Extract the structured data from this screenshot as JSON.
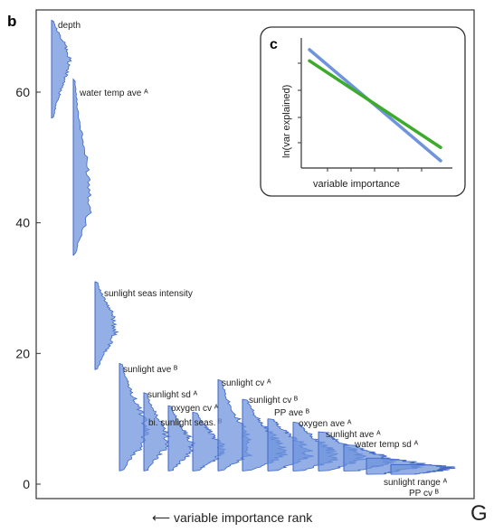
{
  "chart_data": [
    {
      "type": "area",
      "panel": "b",
      "xlabel": "variable importance rank",
      "ylabel": "",
      "ylim": [
        0,
        70
      ],
      "yticks": [
        0,
        20,
        40,
        60
      ],
      "series": [
        {
          "name": "depth",
          "values": {
            "min": 56,
            "max": 71,
            "mode": 65
          }
        },
        {
          "name": "water temp ave ᴬ",
          "values": {
            "min": 35,
            "max": 62,
            "mode": 43
          }
        },
        {
          "name": "sunlight seas intensity",
          "values": {
            "min": 17.5,
            "max": 31,
            "mode": 24
          }
        },
        {
          "name": "sunlight ave ᴮ",
          "values": {
            "min": 2,
            "max": 18.5,
            "mode": 7.5
          }
        },
        {
          "name": "sunlight sd ᴬ",
          "values": {
            "min": 2,
            "max": 14,
            "mode": 6.5
          }
        },
        {
          "name": "oxygen cv ᴬ",
          "values": {
            "min": 2,
            "max": 12,
            "mode": 5.5
          }
        },
        {
          "name": "bi. sunlight seas. ᴮ",
          "values": {
            "min": 2,
            "max": 11,
            "mode": 5
          }
        },
        {
          "name": "sunlight cv ᴬ",
          "values": {
            "min": 2,
            "max": 16,
            "mode": 5
          }
        },
        {
          "name": "sunlight cv ᴮ",
          "values": {
            "min": 2,
            "max": 13,
            "mode": 4.5
          }
        },
        {
          "name": "PP ave ᴮ",
          "values": {
            "min": 2,
            "max": 10,
            "mode": 4.5
          }
        },
        {
          "name": "oxygen ave ᴬ",
          "values": {
            "min": 2,
            "max": 9.5,
            "mode": 4
          }
        },
        {
          "name": "sunlight ave ᴬ",
          "values": {
            "min": 2,
            "max": 8,
            "mode": 4
          }
        },
        {
          "name": "water temp sd ᴬ",
          "values": {
            "min": 2,
            "max": 6,
            "mode": 3.5
          }
        },
        {
          "name": "sunlight range ᴬ",
          "values": {
            "min": 1.5,
            "max": 4,
            "mode": 3
          }
        },
        {
          "name": "PP cv ᴮ",
          "values": {
            "min": 1.5,
            "max": 3,
            "mode": 2.5
          }
        }
      ]
    },
    {
      "type": "line",
      "panel": "c",
      "xlabel": "variable importance",
      "ylabel": "ln(var explained)",
      "series": [
        {
          "values": [
            [
              0,
              1.0
            ],
            [
              1,
              0.0
            ]
          ],
          "color": "#6f94dc"
        },
        {
          "values": [
            [
              0,
              0.9
            ],
            [
              1,
              0.12
            ]
          ],
          "color": "#3cab2a"
        }
      ]
    }
  ],
  "labels": {
    "panel_b": "b",
    "panel_c": "c",
    "xcaption": "⟵  variable importance rank",
    "stray_char": "G"
  },
  "colors": {
    "fill": "#6f94dc",
    "stroke": "#3f66c8",
    "inset_blue": "#6f94dc",
    "inset_green": "#3cab2a",
    "frame": "#333333"
  }
}
